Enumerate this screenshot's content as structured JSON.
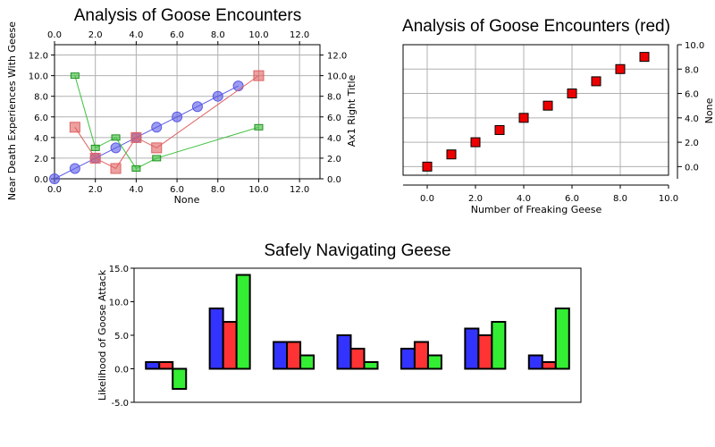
{
  "chart_data": [
    {
      "type": "scatter",
      "title": "Analysis of Goose Encounters",
      "xlabel": "None",
      "ylabel": "Near Death Experiences With Geese",
      "y2label": "Ax1 Right Title",
      "xlim": [
        0,
        13
      ],
      "ylim": [
        0,
        13
      ],
      "x_ticks": [
        "0.0",
        "2.0",
        "4.0",
        "6.0",
        "8.0",
        "10.0",
        "12.0"
      ],
      "y_ticks": [
        "0.0",
        "2.0",
        "4.0",
        "6.0",
        "8.0",
        "10.0",
        "12.0"
      ],
      "grid": true,
      "series": [
        {
          "color": "#5a5ae6",
          "marker": "circle",
          "x": [
            0,
            1,
            2,
            3,
            4,
            5,
            6,
            7,
            8,
            9
          ],
          "y": [
            0,
            1,
            2,
            3,
            4,
            5,
            6,
            7,
            8,
            9
          ]
        },
        {
          "color": "#e06060",
          "marker": "square",
          "x": [
            1,
            2,
            3,
            4,
            5,
            10
          ],
          "y": [
            5,
            2,
            1,
            4,
            3,
            10
          ]
        },
        {
          "color": "#3cc03c",
          "marker": "small-square",
          "x": [
            1,
            2,
            3,
            4,
            5,
            10
          ],
          "y": [
            10,
            3,
            4,
            1,
            2,
            5
          ]
        }
      ]
    },
    {
      "type": "scatter",
      "title": "Analysis of Goose Encounters (red)",
      "xlabel": "Number of Freaking Geese",
      "ylabel": "None",
      "xlim": [
        -1,
        10
      ],
      "ylim": [
        -1,
        10
      ],
      "x_ticks": [
        "0.0",
        "2.0",
        "4.0",
        "6.0",
        "8.0",
        "10.0"
      ],
      "y_ticks": [
        "0.0",
        "2.0",
        "4.0",
        "6.0",
        "8.0",
        "10.0"
      ],
      "grid": true,
      "series": [
        {
          "color": "#ee0000",
          "marker": "square",
          "x": [
            0,
            1,
            2,
            3,
            4,
            5,
            6,
            7,
            8,
            9
          ],
          "y": [
            0,
            1,
            2,
            3,
            4,
            5,
            6,
            7,
            8,
            9
          ]
        }
      ]
    },
    {
      "type": "bar",
      "title": "Safely Navigating Geese",
      "ylabel": "Likelihood of Goose Attack",
      "ylim": [
        -5,
        15
      ],
      "y_ticks": [
        "-5.0",
        "0.0",
        "5.0",
        "10.0",
        "15.0"
      ],
      "grid": false,
      "series": [
        {
          "color": "#3333ff",
          "values": [
            1,
            9,
            4,
            5,
            3,
            6,
            2
          ]
        },
        {
          "color": "#ff3333",
          "values": [
            1,
            7,
            4,
            3,
            4,
            5,
            1
          ]
        },
        {
          "color": "#33ee33",
          "values": [
            -3,
            14,
            2,
            1,
            2,
            7,
            9
          ]
        }
      ]
    }
  ]
}
